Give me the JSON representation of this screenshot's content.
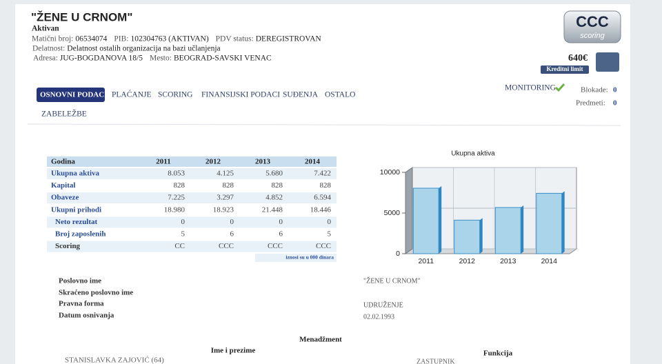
{
  "header": {
    "name": "\"ŽENE U CRNOM\"",
    "status": "Aktivan",
    "fields": [
      [
        {
          "label": "Matični broj:",
          "value": "06534074"
        },
        {
          "label": "PIB:",
          "value": "102304763 (AKTIVAN)"
        },
        {
          "label": "PDV status:",
          "value": "DEREGISTROVAN"
        }
      ],
      [
        {
          "label": "Delatnost:",
          "value": "Delatnost ostalih organizacija na bazi učlanjenja"
        }
      ],
      [
        {
          "label": "Adresa:",
          "value": "JUG-BOGDANOVA 18/5"
        },
        {
          "label": "Mesto:",
          "value": "BEOGRAD-SAVSKI VENAC"
        }
      ]
    ],
    "logo": "CCC",
    "logo_sub": "scoring",
    "limit": "640€",
    "limit_label": "Kreditni limit"
  },
  "tabs": [
    "OSNOVNI PODACI",
    "PLAĆANJE",
    "SCORING",
    "FINANSIJSKI PODACI",
    "SUĐENJA",
    "OSTALO",
    "ZABELEŽBE"
  ],
  "monitoring": "MONITORING",
  "blokade": {
    "label": "Blokade:",
    "value": "0"
  },
  "predmeti": {
    "label": "Predmeti:",
    "value": "0"
  },
  "table": {
    "header": [
      "Godina",
      "2011",
      "2012",
      "2013",
      "2014"
    ],
    "rows": [
      [
        "Ukupna aktiva",
        "8.053",
        "4.125",
        "5.680",
        "7.422"
      ],
      [
        "Kapital",
        "828",
        "828",
        "828",
        "828"
      ],
      [
        "Obaveze",
        "7.225",
        "3.297",
        "4.852",
        "6.594"
      ],
      [
        "Ukupni prihodi",
        "18.980",
        "18.923",
        "21.448",
        "18.446"
      ],
      [
        "Neto rezultat",
        "0",
        "0",
        "0",
        "0"
      ],
      [
        "Broj zaposlenih",
        "5",
        "6",
        "6",
        "5"
      ],
      [
        "Scoring",
        "CC",
        "CCC",
        "CCC",
        "CCC"
      ]
    ],
    "note": "iznosi su u 000 dinara"
  },
  "chart_data": {
    "type": "bar",
    "title": "Ukupna aktiva",
    "categories": [
      "2011",
      "2012",
      "2013",
      "2014"
    ],
    "values": [
      8053,
      4125,
      5680,
      7422
    ],
    "color": "#a9d4ea",
    "ylim": [
      0,
      10000
    ],
    "yticks": [
      0,
      5000,
      10000
    ],
    "grid": true
  },
  "details": [
    {
      "label": "Poslovno ime",
      "value": "\"ŽENE U CRNOM\""
    },
    {
      "label": "Skraćeno poslovno ime"
    },
    {
      "label": "Pravna forma",
      "value": "UDRUŽENJE"
    },
    {
      "label": "Datum osnivanja",
      "value": "02.02.1993"
    }
  ],
  "management": {
    "title": "Menadžment",
    "columns": [
      "Ime i prezime",
      "Funkcija"
    ],
    "rows": [
      [
        "STANISLAVKA ZAJOVIĆ (64)",
        "ZASTUPNIK"
      ]
    ]
  }
}
